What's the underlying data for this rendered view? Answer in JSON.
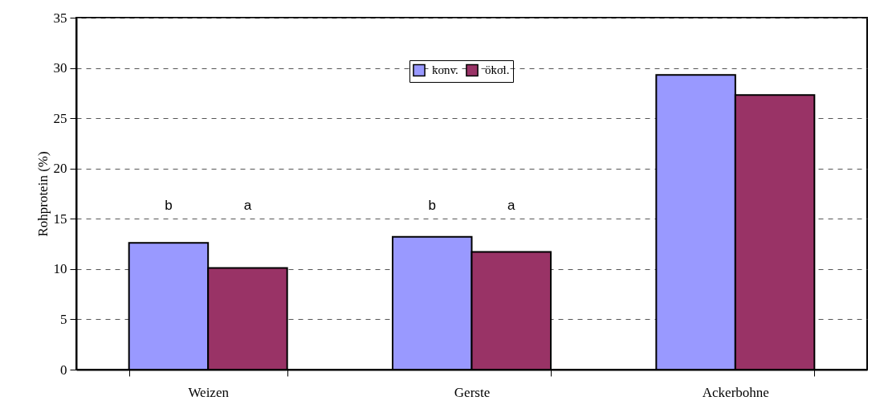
{
  "chart_data": {
    "type": "bar",
    "ylabel": "Rohprotein (%)",
    "categories": [
      "Weizen",
      "Gerste",
      "Ackerbohne"
    ],
    "series": [
      {
        "name": "konv.",
        "color": "#9999ff",
        "values": [
          12.6,
          13.2,
          29.3
        ]
      },
      {
        "name": "ökol.",
        "color": "#993366",
        "values": [
          10.1,
          11.7,
          27.3
        ]
      }
    ],
    "ylim": [
      0,
      35
    ],
    "yticks": [
      0,
      5,
      10,
      15,
      20,
      25,
      30,
      35
    ],
    "grid": "y",
    "legend": "top",
    "annotations": [
      "b",
      "a",
      "b",
      "a"
    ]
  }
}
